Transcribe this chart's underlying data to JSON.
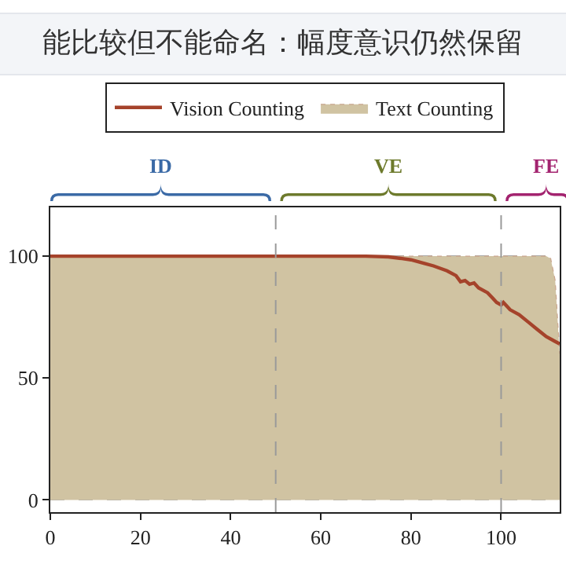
{
  "chart_data": {
    "type": "area",
    "title": "能比较但不能命名：幅度意识仍然保留",
    "xlim": [
      0,
      113
    ],
    "xticks": [
      0,
      20,
      40,
      60,
      80,
      100
    ],
    "ylim": [
      -5,
      120
    ],
    "yticks": [
      0,
      50,
      100
    ],
    "grid": "y",
    "legend": "top",
    "series": [
      {
        "name": "Vision Counting",
        "type": "line",
        "color": "#a5432b",
        "x": [
          0,
          70,
          75,
          78,
          80,
          83,
          85,
          88,
          90,
          91,
          92,
          93,
          94,
          95,
          97,
          98,
          99,
          100,
          100.5,
          102,
          104,
          106,
          108,
          110,
          112,
          113
        ],
        "values": [
          100,
          100,
          99.7,
          99,
          98.5,
          97,
          96,
          94,
          92,
          89.5,
          90,
          88.5,
          89,
          87,
          85,
          83,
          81,
          80,
          81,
          78,
          76,
          73,
          70,
          67,
          65,
          64
        ]
      },
      {
        "name": "Text Counting",
        "type": "area",
        "color": "#d0c3a2",
        "x": [
          0,
          110,
          111,
          112,
          112.5,
          113
        ],
        "values": [
          100,
          100,
          99,
          90,
          75,
          60
        ]
      }
    ],
    "ref_lines": [
      {
        "axis": "x",
        "value": 50
      },
      {
        "axis": "x",
        "value": 100
      }
    ],
    "annotations": [
      "ID",
      "VE",
      "FE"
    ]
  }
}
